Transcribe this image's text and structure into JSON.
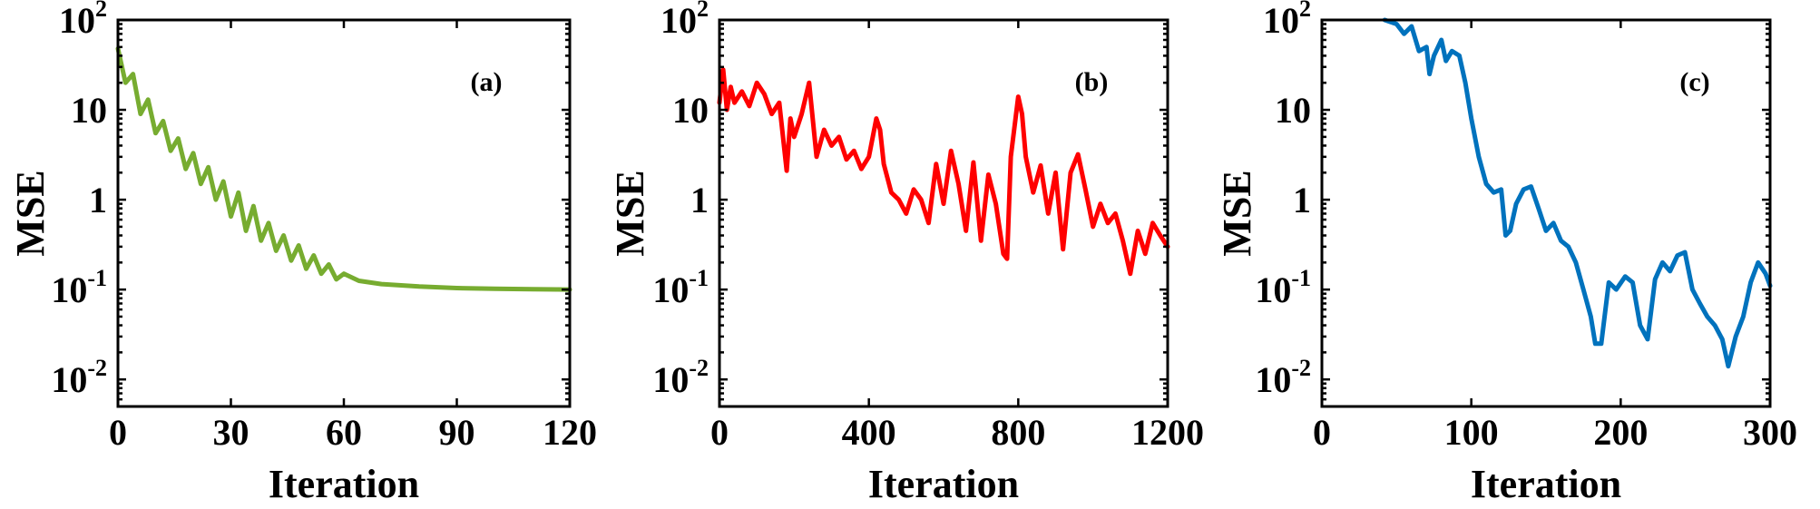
{
  "chart_data": [
    {
      "type": "line",
      "panel_label": "(a)",
      "xlabel": "Iteration",
      "ylabel": "MSE",
      "xlim": [
        0,
        120
      ],
      "ylim": [
        0.005,
        100
      ],
      "yscale": "log",
      "grid": false,
      "xticks": [
        0,
        30,
        60,
        90,
        120
      ],
      "xtick_labels": [
        "0",
        "30",
        "60",
        "90",
        "120"
      ],
      "yticks": [
        0.01,
        0.1,
        1,
        10,
        100
      ],
      "ytick_labels": [
        {
          "base": "10",
          "exp": "-2"
        },
        {
          "base": "10",
          "exp": "-1"
        },
        {
          "base": "1",
          "exp": ""
        },
        {
          "base": "10",
          "exp": ""
        },
        {
          "base": "10",
          "exp": "2"
        }
      ],
      "series": [
        {
          "color": "#77ac30",
          "x": [
            0,
            2,
            4,
            6,
            8,
            10,
            12,
            14,
            16,
            18,
            20,
            22,
            24,
            26,
            28,
            30,
            32,
            34,
            36,
            38,
            40,
            42,
            44,
            46,
            48,
            50,
            52,
            54,
            56,
            58,
            60,
            64,
            70,
            80,
            90,
            100,
            110,
            120
          ],
          "y": [
            48,
            20,
            25,
            9,
            13,
            5.5,
            7.5,
            3.5,
            4.8,
            2.2,
            3.3,
            1.5,
            2.3,
            1.0,
            1.6,
            0.65,
            1.2,
            0.45,
            0.85,
            0.35,
            0.55,
            0.27,
            0.4,
            0.21,
            0.31,
            0.17,
            0.24,
            0.15,
            0.19,
            0.13,
            0.15,
            0.125,
            0.115,
            0.108,
            0.104,
            0.102,
            0.101,
            0.1
          ]
        }
      ]
    },
    {
      "type": "line",
      "panel_label": "(b)",
      "xlabel": "Iteration",
      "ylabel": "MSE",
      "xlim": [
        0,
        1200
      ],
      "ylim": [
        0.005,
        100
      ],
      "yscale": "log",
      "grid": false,
      "xticks": [
        0,
        400,
        800,
        1200
      ],
      "xtick_labels": [
        "0",
        "400",
        "800",
        "1200"
      ],
      "yticks": [
        0.01,
        0.1,
        1,
        10,
        100
      ],
      "ytick_labels": [
        {
          "base": "10",
          "exp": "-2"
        },
        {
          "base": "10",
          "exp": "-1"
        },
        {
          "base": "1",
          "exp": ""
        },
        {
          "base": "10",
          "exp": ""
        },
        {
          "base": "10",
          "exp": "2"
        }
      ],
      "series": [
        {
          "color": "#ff0000",
          "x": [
            0,
            10,
            20,
            30,
            40,
            60,
            80,
            100,
            120,
            140,
            160,
            180,
            190,
            200,
            220,
            240,
            260,
            280,
            300,
            320,
            340,
            360,
            380,
            400,
            420,
            430,
            440,
            460,
            480,
            500,
            520,
            540,
            560,
            580,
            600,
            620,
            640,
            660,
            680,
            700,
            720,
            740,
            760,
            770,
            780,
            800,
            810,
            820,
            840,
            860,
            880,
            900,
            920,
            940,
            960,
            980,
            1000,
            1020,
            1040,
            1060,
            1080,
            1100,
            1120,
            1140,
            1160,
            1180,
            1200
          ],
          "y": [
            12,
            28,
            10,
            18,
            12,
            16,
            11,
            20,
            15,
            9,
            12,
            2.1,
            8,
            5,
            9,
            20,
            3,
            6,
            4,
            5,
            2.8,
            3.5,
            2.2,
            3,
            8,
            6,
            2.5,
            1.2,
            1.0,
            0.7,
            1.3,
            1.0,
            0.55,
            2.5,
            0.9,
            3.5,
            1.5,
            0.45,
            2.6,
            0.35,
            1.9,
            0.9,
            0.25,
            0.22,
            3,
            14,
            9,
            3,
            1.2,
            2.4,
            0.7,
            2,
            0.28,
            2,
            3.2,
            1.3,
            0.5,
            0.9,
            0.55,
            0.7,
            0.35,
            0.15,
            0.45,
            0.25,
            0.55,
            0.4,
            0.3
          ]
        }
      ]
    },
    {
      "type": "line",
      "panel_label": "(c)",
      "xlabel": "Iteration",
      "ylabel": "MSE",
      "xlim": [
        0,
        300
      ],
      "ylim": [
        0.005,
        100
      ],
      "yscale": "log",
      "grid": false,
      "xticks": [
        0,
        100,
        200,
        300
      ],
      "xtick_labels": [
        "0",
        "100",
        "200",
        "300"
      ],
      "yticks": [
        0.01,
        0.1,
        1,
        10,
        100
      ],
      "ytick_labels": [
        {
          "base": "10",
          "exp": "-2"
        },
        {
          "base": "10",
          "exp": "-1"
        },
        {
          "base": "1",
          "exp": ""
        },
        {
          "base": "10",
          "exp": ""
        },
        {
          "base": "10",
          "exp": "2"
        }
      ],
      "series": [
        {
          "color": "#0072bd",
          "x": [
            42,
            50,
            55,
            60,
            65,
            70,
            72,
            75,
            80,
            83,
            87,
            92,
            96,
            100,
            105,
            110,
            115,
            120,
            123,
            126,
            130,
            135,
            140,
            145,
            150,
            155,
            160,
            165,
            170,
            175,
            180,
            183,
            187,
            192,
            197,
            203,
            208,
            213,
            218,
            223,
            228,
            233,
            238,
            243,
            248,
            253,
            258,
            263,
            268,
            272,
            277,
            282,
            287,
            292,
            297,
            300
          ],
          "y": [
            100,
            90,
            70,
            85,
            45,
            50,
            25,
            40,
            60,
            35,
            45,
            40,
            20,
            8,
            3,
            1.5,
            1.2,
            1.3,
            0.4,
            0.45,
            0.9,
            1.3,
            1.4,
            0.8,
            0.45,
            0.55,
            0.35,
            0.3,
            0.2,
            0.1,
            0.05,
            0.025,
            0.025,
            0.12,
            0.1,
            0.14,
            0.12,
            0.04,
            0.028,
            0.13,
            0.2,
            0.16,
            0.24,
            0.26,
            0.1,
            0.07,
            0.05,
            0.04,
            0.028,
            0.014,
            0.03,
            0.05,
            0.12,
            0.2,
            0.15,
            0.11
          ]
        }
      ]
    }
  ]
}
